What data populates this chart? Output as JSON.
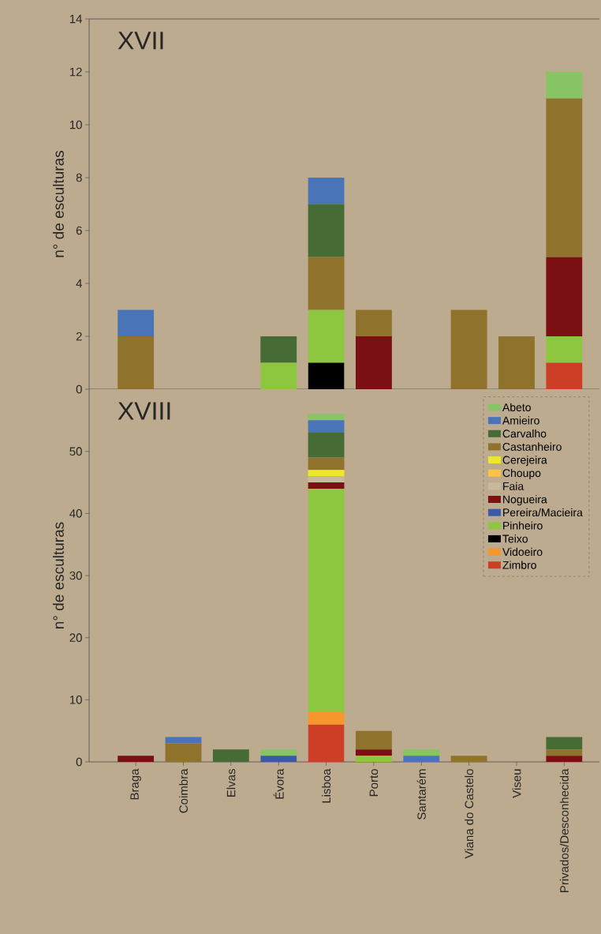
{
  "chart_data": [
    {
      "type": "bar",
      "title": "XVII",
      "ylabel": "n° de esculturas",
      "stacked": true,
      "tick_labels": "y",
      "ylim": [
        0,
        14
      ],
      "yticks": [
        0,
        2,
        4,
        6,
        8,
        10,
        12,
        14
      ],
      "categories": [
        null,
        null,
        null,
        null,
        null,
        null,
        null,
        null,
        null,
        null
      ],
      "series": [
        {
          "color": "#cc3e25",
          "values": [
            0,
            0,
            0,
            0,
            0,
            0,
            0,
            0,
            0,
            1
          ]
        },
        {
          "color": "#000000",
          "values": [
            0,
            0,
            0,
            0,
            1,
            0,
            0,
            0,
            0,
            0
          ]
        },
        {
          "color": "#8dc63f",
          "values": [
            0,
            0,
            0,
            1,
            2,
            0,
            0,
            0,
            0,
            1
          ]
        },
        {
          "color": "#7b1012",
          "values": [
            0,
            0,
            0,
            0,
            0,
            2,
            0,
            0,
            0,
            3
          ]
        },
        {
          "color": "#8f722b",
          "values": [
            2,
            0,
            0,
            0,
            2,
            1,
            0,
            3,
            2,
            6
          ]
        },
        {
          "color": "#466b35",
          "values": [
            0,
            0,
            0,
            1,
            2,
            0,
            0,
            0,
            0,
            0
          ]
        },
        {
          "color": "#4a74b8",
          "values": [
            1,
            0,
            0,
            0,
            1,
            0,
            0,
            0,
            0,
            0
          ]
        },
        {
          "color": "#86c464",
          "values": [
            0,
            0,
            0,
            0,
            0,
            0,
            0,
            0,
            0,
            1
          ]
        }
      ]
    },
    {
      "type": "bar",
      "title": "XVIII",
      "ylabel": "n° de esculturas",
      "stacked": true,
      "legend": "top right",
      "ylim": [
        0,
        60
      ],
      "yticks": [
        0,
        10,
        20,
        30,
        40,
        50
      ],
      "categories": [
        "Braga",
        "Coimbra",
        "Elvas",
        "Évora",
        "Lisboa",
        "Porto",
        "Santarém",
        "Viana do Castelo",
        "Viseu",
        "Privados/Desconhecida"
      ],
      "series": [
        {
          "name": "Zimbro",
          "color": "#cc3e25",
          "values": [
            0,
            0,
            0,
            0,
            6,
            0,
            0,
            0,
            0,
            0
          ]
        },
        {
          "name": "Vidoeiro",
          "color": "#f6962b",
          "values": [
            0,
            0,
            0,
            0,
            2,
            0,
            0,
            0,
            0,
            0
          ]
        },
        {
          "name": "Teixo",
          "color": "#000000",
          "values": [
            0,
            0,
            0,
            0,
            0,
            0,
            0,
            0,
            0,
            0
          ]
        },
        {
          "name": "Pinheiro",
          "color": "#8dc63f",
          "values": [
            0,
            0,
            0,
            0,
            36,
            1,
            0,
            0,
            0,
            0
          ]
        },
        {
          "name": "Pereira/Macieira",
          "color": "#3a5aa8",
          "values": [
            0,
            0,
            0,
            1,
            0,
            0,
            0,
            0,
            0,
            0
          ]
        },
        {
          "name": "Nogueira",
          "color": "#7b1012",
          "values": [
            1,
            0,
            0,
            0,
            1,
            1,
            0,
            0,
            0,
            1
          ]
        },
        {
          "name": "Faia",
          "color": "#c8b89c",
          "values": [
            0,
            0,
            0,
            0,
            1,
            0,
            0,
            0,
            0,
            0
          ]
        },
        {
          "name": "Choupo",
          "color": "#fdc441",
          "values": [
            0,
            0,
            0,
            0,
            0,
            0,
            0,
            0,
            0,
            0
          ]
        },
        {
          "name": "Cerejeira",
          "color": "#ede829",
          "values": [
            0,
            0,
            0,
            0,
            1,
            0,
            0,
            0,
            0,
            0
          ]
        },
        {
          "name": "Castanheiro",
          "color": "#8f722b",
          "values": [
            0,
            3,
            0,
            0,
            2,
            3,
            0,
            1,
            0,
            1
          ]
        },
        {
          "name": "Carvalho",
          "color": "#466b35",
          "values": [
            0,
            0,
            2,
            0,
            4,
            0,
            0,
            0,
            0,
            2
          ]
        },
        {
          "name": "Amieiro",
          "color": "#4a74b8",
          "values": [
            0,
            1,
            0,
            0,
            2,
            0,
            1,
            0,
            0,
            0
          ]
        },
        {
          "name": "Abeto",
          "color": "#86c464",
          "values": [
            0,
            0,
            0,
            1,
            1,
            0,
            1,
            0,
            0,
            0
          ]
        }
      ]
    }
  ]
}
